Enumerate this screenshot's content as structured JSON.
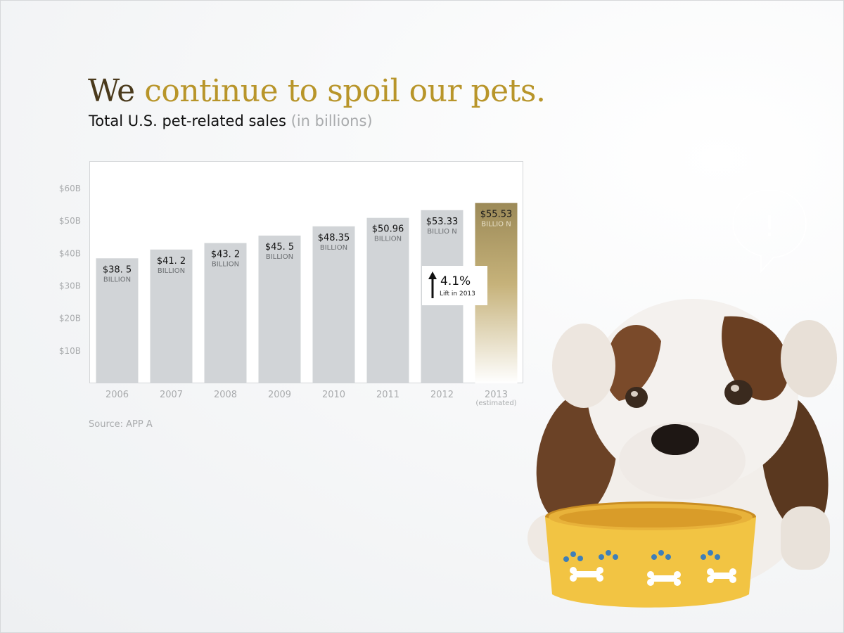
{
  "title": {
    "lead": "We",
    "rest": "continue to spoil our pets."
  },
  "subtitle": {
    "main": "Total U.S. pet-related sales",
    "note": "(in billions)"
  },
  "source": "Source: APP  A",
  "callout": {
    "value": "4.1%",
    "caption": "Lift in 2013"
  },
  "bubble": {
    "mark": "!"
  },
  "colors": {
    "bar": "#d1d4d7",
    "highlight_top": "#9c8a58",
    "highlight_bottom": "#ffffff",
    "title_gold": "#b8952a",
    "title_dark": "#4a3a1c"
  },
  "chart_data": {
    "type": "bar",
    "title": "Total U.S. pet-related sales (in billions)",
    "categories": [
      "2006",
      "2007",
      "2008",
      "2009",
      "2010",
      "2011",
      "2012",
      "2013"
    ],
    "category_notes": [
      "",
      "",
      "",
      "",
      "",
      "",
      "",
      "(estimated)"
    ],
    "values": [
      38.5,
      41.2,
      43.2,
      45.5,
      48.35,
      50.96,
      53.33,
      55.53
    ],
    "value_labels": [
      "$38. 5",
      "$41. 2",
      "$43. 2",
      "$45. 5",
      "$48.35",
      "$50.96",
      "$53.33",
      "$55.53"
    ],
    "unit_labels": [
      "BILLION",
      "BILLION",
      "BILLION",
      "BILLION",
      "BILLION",
      "BILLION",
      "BILLIO N",
      "BILLIO N"
    ],
    "highlight_index": 7,
    "yticks": [
      10,
      20,
      30,
      40,
      50,
      60
    ],
    "ytick_labels": [
      "$10B",
      "$20B",
      "$30B",
      "$40B",
      "$50B",
      "$60B"
    ],
    "ylim": [
      0,
      63
    ],
    "grid": false
  }
}
